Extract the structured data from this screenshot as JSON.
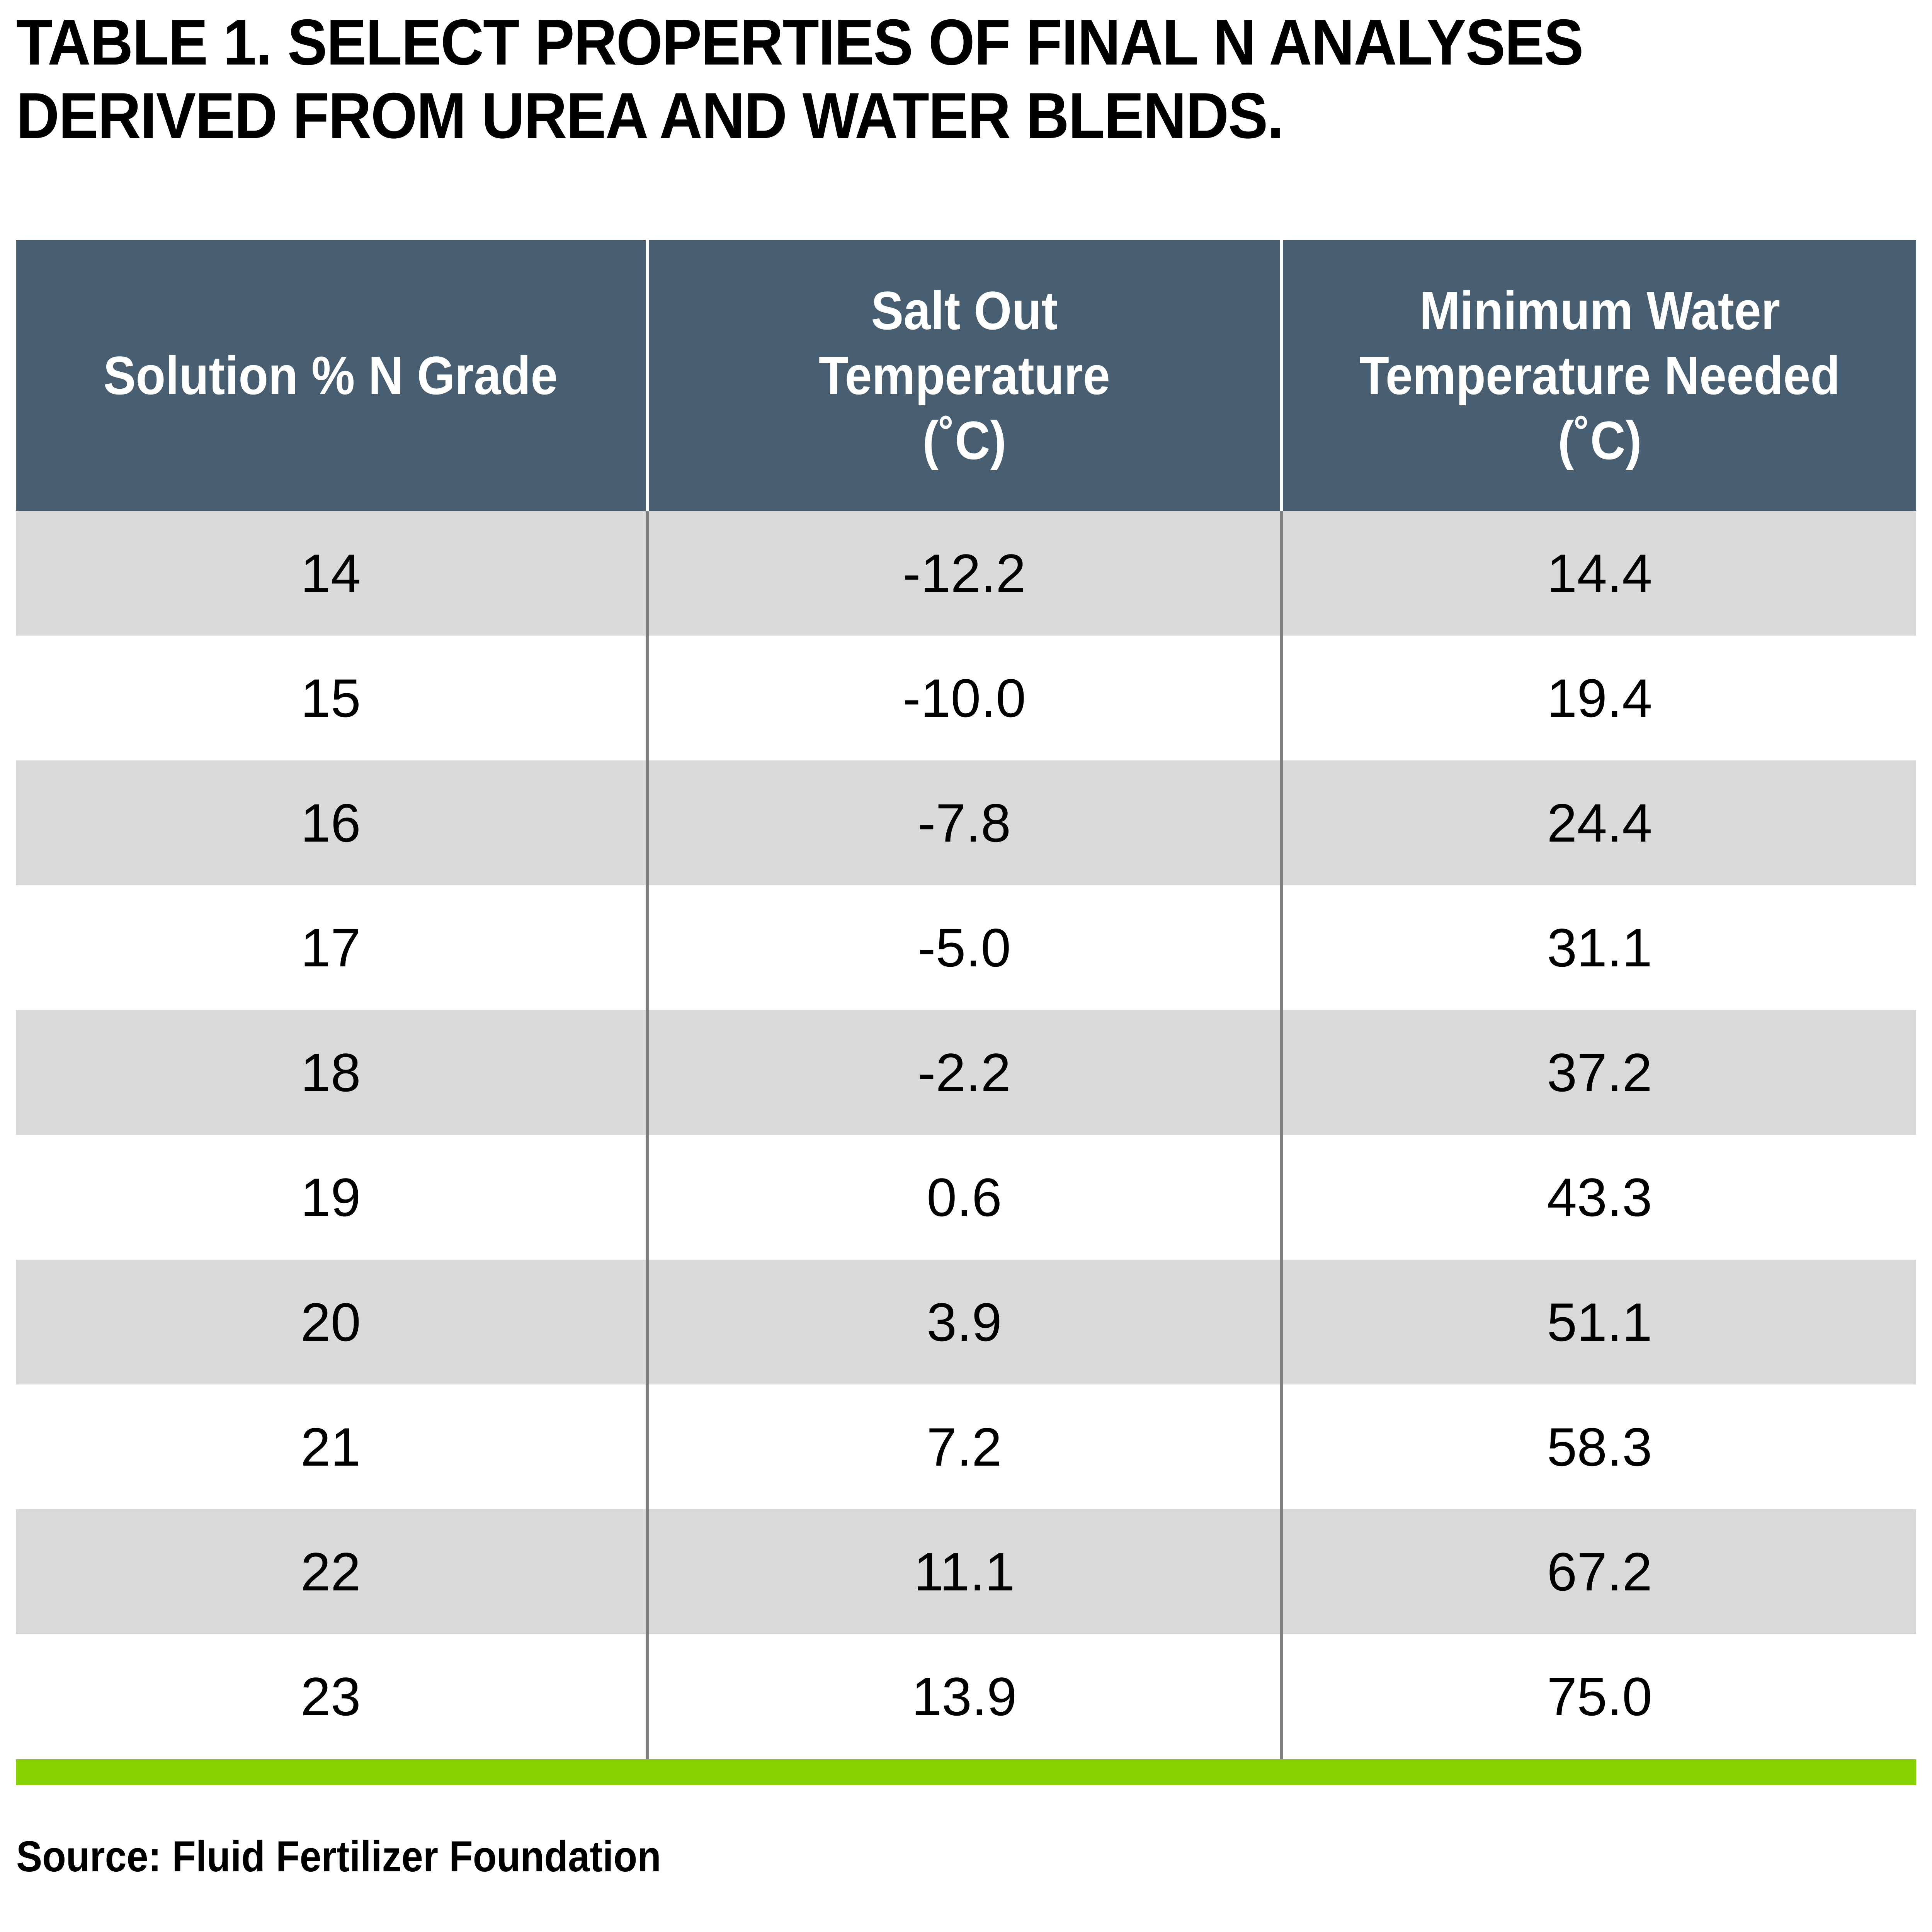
{
  "title": {
    "line1": "TABLE 1. SELECT PROPERTIES OF FINAL N ANALYSES",
    "line2": "DERIVED FROM UREA AND WATER BLENDS."
  },
  "table": {
    "headers": [
      {
        "lines": [
          "Solution %  N Grade"
        ]
      },
      {
        "lines": [
          "Salt Out",
          "Temperature",
          "(˚C)"
        ]
      },
      {
        "lines": [
          "Minimum Water",
          "Temperature Needed",
          "(˚C)"
        ]
      }
    ],
    "rows": [
      [
        "14",
        "-12.2",
        "14.4"
      ],
      [
        "15",
        "-10.0",
        "19.4"
      ],
      [
        "16",
        "-7.8",
        "24.4"
      ],
      [
        "17",
        "-5.0",
        "31.1"
      ],
      [
        "18",
        "-2.2",
        "37.2"
      ],
      [
        "19",
        "0.6",
        "43.3"
      ],
      [
        "20",
        "3.9",
        "51.1"
      ],
      [
        "21",
        "7.2",
        "58.3"
      ],
      [
        "22",
        "11.1",
        "67.2"
      ],
      [
        "23",
        "13.9",
        "75.0"
      ]
    ]
  },
  "source": "Source: Fluid Fertilizer Foundation",
  "colors": {
    "header_bg": "#485e71",
    "row_shaded": "#d9d9d9",
    "divider": "#808080",
    "accent_bar": "#87d300"
  },
  "chart_data": {
    "type": "table",
    "title": "TABLE 1. SELECT PROPERTIES OF FINAL N ANALYSES DERIVED FROM UREA AND WATER BLENDS.",
    "columns": [
      "Solution % N Grade",
      "Salt Out Temperature (˚C)",
      "Minimum Water Temperature Needed (˚C)"
    ],
    "rows": [
      [
        14,
        -12.2,
        14.4
      ],
      [
        15,
        -10.0,
        19.4
      ],
      [
        16,
        -7.8,
        24.4
      ],
      [
        17,
        -5.0,
        31.1
      ],
      [
        18,
        -2.2,
        37.2
      ],
      [
        19,
        0.6,
        43.3
      ],
      [
        20,
        3.9,
        51.1
      ],
      [
        21,
        7.2,
        58.3
      ],
      [
        22,
        11.1,
        67.2
      ],
      [
        23,
        13.9,
        75.0
      ]
    ],
    "source": "Source: Fluid Fertilizer Foundation"
  }
}
